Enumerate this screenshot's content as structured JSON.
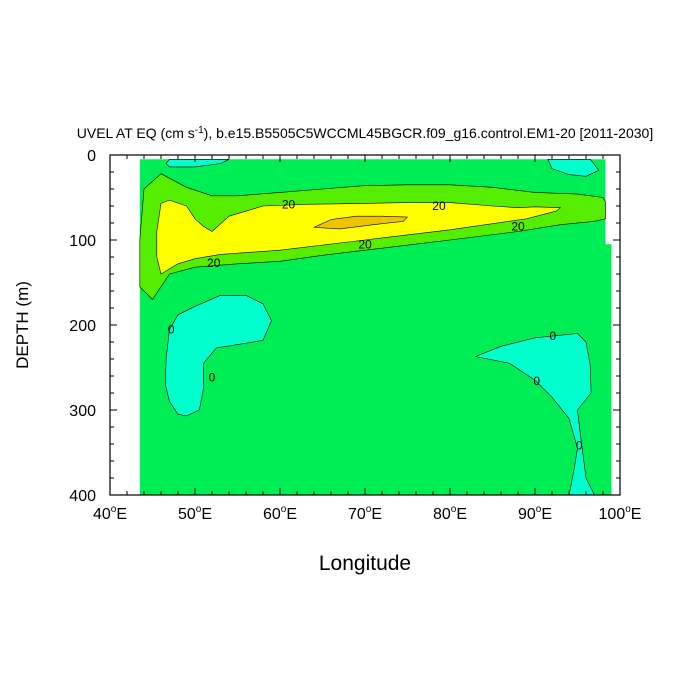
{
  "chart_data": {
    "type": "contour",
    "title": "UVEL AT EQ (cm s",
    "title_exponent": "-1",
    "title_rest": "), b.e15.B5505C5WCCML45BGCR.f09_g16.control.EM1-20 [2011-2030]",
    "xlabel": "Longitude",
    "ylabel": "DEPTH (m)",
    "xlim": [
      40,
      100
    ],
    "ylim": [
      0,
      400
    ],
    "y_reversed": true,
    "x_ticks": [
      {
        "value": 40,
        "num": "40",
        "deg": "o",
        "hemi": "E"
      },
      {
        "value": 50,
        "num": "50",
        "deg": "o",
        "hemi": "E"
      },
      {
        "value": 60,
        "num": "60",
        "deg": "o",
        "hemi": "E"
      },
      {
        "value": 70,
        "num": "70",
        "deg": "o",
        "hemi": "E"
      },
      {
        "value": 80,
        "num": "80",
        "deg": "o",
        "hemi": "E"
      },
      {
        "value": 90,
        "num": "90",
        "deg": "o",
        "hemi": "E"
      },
      {
        "value": 100,
        "num": "100",
        "deg": "o",
        "hemi": "E"
      }
    ],
    "y_ticks": [
      {
        "value": 0,
        "label": "0"
      },
      {
        "value": 100,
        "label": "100"
      },
      {
        "value": 200,
        "label": "200"
      },
      {
        "value": 300,
        "label": "300"
      },
      {
        "value": 400,
        "label": "400"
      }
    ],
    "colors": {
      "background_field": "#00ee55",
      "negative": "#00ffcc",
      "band_20_40": "#55ee00",
      "band_40_60": "#ffff00",
      "band_60_plus": "#eec400"
    },
    "regions": [
      {
        "name": "field-0-20",
        "fill": "#00ee55",
        "points": [
          [
            43.5,
            5
          ],
          [
            98.3,
            5
          ],
          [
            98.3,
            105
          ],
          [
            99,
            105
          ],
          [
            99,
            400
          ],
          [
            43.5,
            400
          ]
        ]
      },
      {
        "name": "neg-surface-west",
        "fill": "#00ffcc",
        "points": [
          [
            47,
            5
          ],
          [
            54,
            5
          ],
          [
            53,
            10
          ],
          [
            50,
            14
          ],
          [
            47,
            14
          ],
          [
            46.6,
            10
          ]
        ]
      },
      {
        "name": "neg-surface-east",
        "fill": "#00ffcc",
        "points": [
          [
            91.5,
            5
          ],
          [
            96.5,
            5
          ],
          [
            97.5,
            18
          ],
          [
            96,
            25
          ],
          [
            94,
            23
          ],
          [
            92,
            16
          ]
        ]
      },
      {
        "name": "neg-west-lobe",
        "fill": "#00ffcc",
        "points": [
          [
            53,
            165
          ],
          [
            56,
            165
          ],
          [
            58,
            175
          ],
          [
            59,
            195
          ],
          [
            58,
            218
          ],
          [
            55,
            223
          ],
          [
            52.5,
            227
          ],
          [
            51,
            245
          ],
          [
            51,
            275
          ],
          [
            50.5,
            300
          ],
          [
            49,
            307
          ],
          [
            48,
            305
          ],
          [
            47,
            290
          ],
          [
            46.5,
            270
          ],
          [
            46.6,
            240
          ],
          [
            47,
            205
          ],
          [
            48,
            188
          ],
          [
            50,
            178
          ]
        ]
      },
      {
        "name": "neg-east-lobe",
        "fill": "#00ffcc",
        "points": [
          [
            83,
            237
          ],
          [
            86,
            225
          ],
          [
            90,
            215
          ],
          [
            93,
            212
          ],
          [
            95,
            210
          ],
          [
            96,
            220
          ],
          [
            96.5,
            248
          ],
          [
            96.6,
            280
          ],
          [
            95,
            300
          ],
          [
            95.3,
            325
          ],
          [
            96,
            380
          ],
          [
            97,
            400
          ],
          [
            94,
            400
          ],
          [
            94.5,
            375
          ],
          [
            95,
            345
          ],
          [
            94,
            310
          ],
          [
            92,
            285
          ],
          [
            90,
            265
          ],
          [
            87,
            245
          ]
        ]
      },
      {
        "name": "band-20-40",
        "fill": "#55ee00",
        "points": [
          [
            45,
            170
          ],
          [
            43.5,
            155
          ],
          [
            43.5,
            100
          ],
          [
            44,
            40
          ],
          [
            46,
            22
          ],
          [
            49,
            38
          ],
          [
            52,
            48
          ],
          [
            55,
            48
          ],
          [
            60,
            44
          ],
          [
            65,
            40
          ],
          [
            70,
            36
          ],
          [
            75,
            35
          ],
          [
            80,
            35
          ],
          [
            85,
            38
          ],
          [
            90,
            44
          ],
          [
            95,
            46
          ],
          [
            98,
            50
          ],
          [
            98.3,
            55
          ],
          [
            98.3,
            75
          ],
          [
            97,
            78
          ],
          [
            93,
            82
          ],
          [
            88,
            90
          ],
          [
            80,
            100
          ],
          [
            70,
            112
          ],
          [
            65,
            118
          ],
          [
            60,
            125
          ],
          [
            55,
            128
          ],
          [
            50,
            132
          ],
          [
            47,
            140
          ]
        ]
      },
      {
        "name": "band-40-60",
        "fill": "#ffff00",
        "points": [
          [
            46,
            140
          ],
          [
            45.5,
            120
          ],
          [
            45.5,
            90
          ],
          [
            46,
            57
          ],
          [
            47,
            53
          ],
          [
            49,
            60
          ],
          [
            50,
            75
          ],
          [
            51,
            84
          ],
          [
            52,
            90
          ],
          [
            54,
            72
          ],
          [
            58,
            60
          ],
          [
            63,
            58
          ],
          [
            70,
            57
          ],
          [
            75,
            56
          ],
          [
            80,
            56
          ],
          [
            85,
            60
          ],
          [
            88,
            62
          ],
          [
            90,
            61
          ],
          [
            93,
            62
          ],
          [
            92.5,
            66
          ],
          [
            89,
            75
          ],
          [
            80,
            88
          ],
          [
            70,
            100
          ],
          [
            60,
            112
          ],
          [
            53,
            117
          ],
          [
            50,
            122
          ],
          [
            48,
            128
          ]
        ]
      },
      {
        "name": "band-60-plus",
        "fill": "#eec400",
        "points": [
          [
            64,
            85
          ],
          [
            66,
            76
          ],
          [
            69,
            72
          ],
          [
            72,
            72
          ],
          [
            75,
            73
          ],
          [
            74.5,
            78
          ],
          [
            71,
            82
          ],
          [
            67,
            87
          ]
        ]
      }
    ],
    "contour_labels": [
      {
        "text": "20",
        "x": 61,
        "y": 58
      },
      {
        "text": "20",
        "x": 78.7,
        "y": 60
      },
      {
        "text": "20",
        "x": 88,
        "y": 84
      },
      {
        "text": "20",
        "x": 70,
        "y": 105
      },
      {
        "text": "20",
        "x": 52.2,
        "y": 127
      },
      {
        "text": "0",
        "x": 47.2,
        "y": 205
      },
      {
        "text": "0",
        "x": 52,
        "y": 262
      },
      {
        "text": "0",
        "x": 92.1,
        "y": 213
      },
      {
        "text": "0",
        "x": 90.2,
        "y": 266
      },
      {
        "text": "0",
        "x": 95.2,
        "y": 342
      }
    ]
  }
}
